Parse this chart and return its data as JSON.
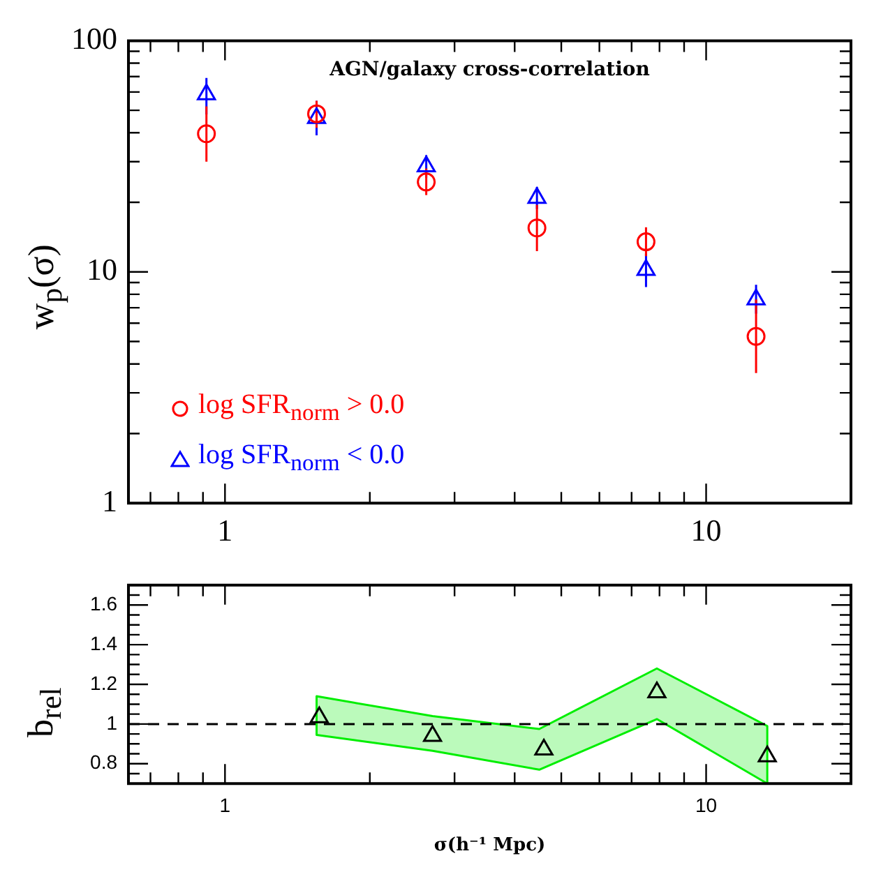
{
  "chart_data": [
    {
      "type": "scatter",
      "title": "AGN/galaxy cross-correlation",
      "ylabel": "w$_{p}$(σ)",
      "log": "xy",
      "xlim": [
        0.63,
        20
      ],
      "ylim": [
        1,
        100
      ],
      "xticks": [
        {
          "value": 0.7,
          "label": null
        },
        {
          "value": 0.8,
          "label": null
        },
        {
          "value": 0.9,
          "label": null
        },
        {
          "value": 1,
          "label": "1"
        },
        {
          "value": 2,
          "label": null
        },
        {
          "value": 3,
          "label": null
        },
        {
          "value": 4,
          "label": null
        },
        {
          "value": 5,
          "label": null
        },
        {
          "value": 6,
          "label": null
        },
        {
          "value": 7,
          "label": null
        },
        {
          "value": 8,
          "label": null
        },
        {
          "value": 9,
          "label": null
        },
        {
          "value": 10,
          "label": "10"
        },
        {
          "value": 20,
          "label": null
        }
      ],
      "yticks": [
        {
          "value": 1,
          "label": "1"
        },
        {
          "value": 2,
          "label": null
        },
        {
          "value": 3,
          "label": null
        },
        {
          "value": 4,
          "label": null
        },
        {
          "value": 5,
          "label": null
        },
        {
          "value": 6,
          "label": null
        },
        {
          "value": 7,
          "label": null
        },
        {
          "value": 8,
          "label": null
        },
        {
          "value": 9,
          "label": null
        },
        {
          "value": 10,
          "label": "10"
        },
        {
          "value": 20,
          "label": null
        },
        {
          "value": 30,
          "label": null
        },
        {
          "value": 40,
          "label": null
        },
        {
          "value": 50,
          "label": null
        },
        {
          "value": 60,
          "label": null
        },
        {
          "value": 70,
          "label": null
        },
        {
          "value": 80,
          "label": null
        },
        {
          "value": 90,
          "label": null
        },
        {
          "value": 100,
          "label": "100"
        }
      ],
      "legend": "bottom left",
      "grid": false,
      "series": [
        {
          "name": "log SFR$_{norm}$ > 0.0",
          "color": "#ff0000",
          "marker": "circle",
          "x": [
            0.915,
            1.55,
            2.62,
            4.45,
            7.5,
            12.7
          ],
          "values": [
            39.6,
            48.3,
            24.5,
            15.5,
            13.5,
            5.26
          ],
          "errors": [
            [
              30,
              52
            ],
            [
              42,
              55
            ],
            [
              21.5,
              28
            ],
            [
              12.3,
              19.5
            ],
            [
              11.7,
              15.6
            ],
            [
              3.65,
              7.6
            ]
          ]
        },
        {
          "name": "log SFR$_{norm}$ < 0.0",
          "color": "#0000ff",
          "marker": "triangle",
          "x": [
            0.915,
            1.55,
            2.62,
            4.45,
            7.5,
            12.7
          ],
          "values": [
            58.6,
            46.3,
            28.6,
            20.9,
            10.2,
            7.6
          ],
          "errors": [
            [
              48,
              69
            ],
            [
              39,
              55
            ],
            [
              25.5,
              32
            ],
            [
              18.7,
              23.3
            ],
            [
              8.6,
              12
            ],
            [
              6.6,
              8.8
            ]
          ]
        }
      ]
    },
    {
      "type": "scatter",
      "xlabel": "σ(h⁻¹ Mpc)",
      "ylabel": "b$_{rel}$",
      "log": "x",
      "xlim": [
        0.63,
        20
      ],
      "ylim": [
        0.7,
        1.7
      ],
      "xticks": [
        {
          "value": 0.7,
          "label": null
        },
        {
          "value": 0.8,
          "label": null
        },
        {
          "value": 0.9,
          "label": null
        },
        {
          "value": 1,
          "label": "1"
        },
        {
          "value": 2,
          "label": null
        },
        {
          "value": 3,
          "label": null
        },
        {
          "value": 4,
          "label": null
        },
        {
          "value": 5,
          "label": null
        },
        {
          "value": 6,
          "label": null
        },
        {
          "value": 7,
          "label": null
        },
        {
          "value": 8,
          "label": null
        },
        {
          "value": 9,
          "label": null
        },
        {
          "value": 10,
          "label": "10"
        },
        {
          "value": 20,
          "label": null
        }
      ],
      "yticks": [
        {
          "value": 0.75,
          "label": null
        },
        {
          "value": 0.8,
          "label": "0.8"
        },
        {
          "value": 0.85,
          "label": null
        },
        {
          "value": 0.9,
          "label": null
        },
        {
          "value": 0.95,
          "label": null
        },
        {
          "value": 1,
          "label": "1"
        },
        {
          "value": 1.05,
          "label": null
        },
        {
          "value": 1.1,
          "label": null
        },
        {
          "value": 1.15,
          "label": null
        },
        {
          "value": 1.2,
          "label": "1.2"
        },
        {
          "value": 1.25,
          "label": null
        },
        {
          "value": 1.3,
          "label": null
        },
        {
          "value": 1.35,
          "label": null
        },
        {
          "value": 1.4,
          "label": "1.4"
        },
        {
          "value": 1.45,
          "label": null
        },
        {
          "value": 1.5,
          "label": null
        },
        {
          "value": 1.55,
          "label": null
        },
        {
          "value": 1.6,
          "label": "1.6"
        },
        {
          "value": 1.65,
          "label": null
        }
      ],
      "grid": false,
      "ref_lines": [
        {
          "axis": "y",
          "value": 1,
          "color": "#000000",
          "line_style": "dashed"
        }
      ],
      "series": [
        {
          "type": "area",
          "color": "#00ee00",
          "x": [
            1.55,
            2.7,
            4.5,
            7.9,
            13.4
          ],
          "values": [
            null,
            null,
            null,
            null,
            null
          ],
          "lower": [
            0.945,
            0.865,
            0.77,
            1.025,
            0.7
          ],
          "upper": [
            1.14,
            1.04,
            0.975,
            1.28,
            0.99
          ]
        },
        {
          "type": "scatter",
          "color": "#000000",
          "marker": "triangle",
          "x": [
            1.57,
            2.7,
            4.6,
            7.9,
            13.4
          ],
          "values": [
            1.034,
            0.94,
            0.871,
            1.16,
            0.837
          ]
        }
      ]
    }
  ]
}
